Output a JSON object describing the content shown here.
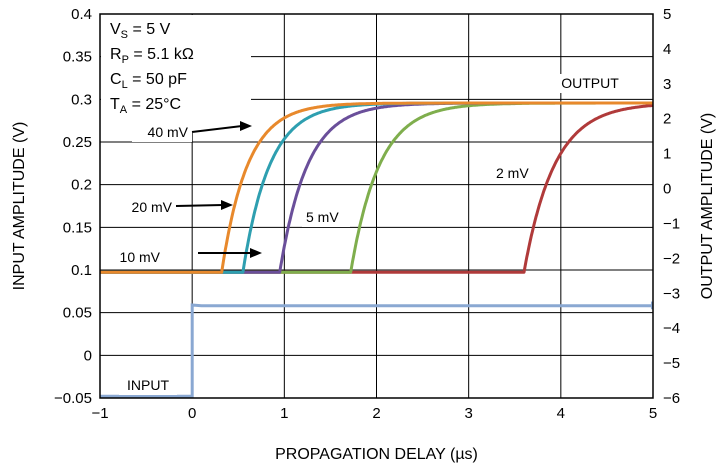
{
  "chart_data": {
    "type": "line",
    "xlabel": "PROPAGATION DELAY (µs)",
    "ylabel_left": "INPUT AMPLITUDE (V)",
    "ylabel_right": "OUTPUT AMPLITUDE (V)",
    "xlim": [
      -1,
      5
    ],
    "ylim_left": [
      -0.05,
      0.4
    ],
    "ylim_right": [
      -6,
      5
    ],
    "x_ticks": [
      "−1",
      "0",
      "1",
      "2",
      "3",
      "4",
      "5"
    ],
    "y_ticks_left": [
      "−0.05",
      "0",
      "0.05",
      "0.1",
      "0.15",
      "0.2",
      "0.25",
      "0.3",
      "0.35",
      "0.4"
    ],
    "y_ticks_right": [
      "−6",
      "−5",
      "−4",
      "−3",
      "−2",
      "−1",
      "0",
      "1",
      "2",
      "3",
      "4",
      "5"
    ],
    "grid": true,
    "conditions": [
      {
        "main": "V",
        "sub": "S",
        "rest": " = 5 V"
      },
      {
        "main": "R",
        "sub": "P",
        "rest": " = 5.1 kΩ"
      },
      {
        "main": "C",
        "sub": "L",
        "rest": " = 50 pF"
      },
      {
        "main": "T",
        "sub": "A",
        "rest": " = 25°C"
      }
    ],
    "annotations": {
      "output": "OUTPUT",
      "input": "INPUT",
      "od40": "40 mV",
      "od20": "20 mV",
      "od10": "10 mV",
      "od5": "5 mV",
      "od2": "2 mV"
    },
    "output_low_v": -2.4,
    "output_high_v": 2.45,
    "input_series": {
      "color": "#8aa8d2",
      "x": [
        -1,
        0,
        0,
        0.1,
        5
      ],
      "y": [
        -0.048,
        -0.048,
        0.059,
        0.058,
        0.058
      ]
    },
    "series": [
      {
        "color": "#e8892c",
        "delay_us": 0.32,
        "rise_us": 0.28
      },
      {
        "color": "#2e9fb0",
        "delay_us": 0.55,
        "rise_us": 0.29
      },
      {
        "color": "#6a4f9a",
        "delay_us": 0.95,
        "rise_us": 0.3
      },
      {
        "color": "#7fae4d",
        "delay_us": 1.72,
        "rise_us": 0.31
      },
      {
        "color": "#b03a3a",
        "delay_us": 3.6,
        "rise_us": 0.33
      }
    ]
  }
}
